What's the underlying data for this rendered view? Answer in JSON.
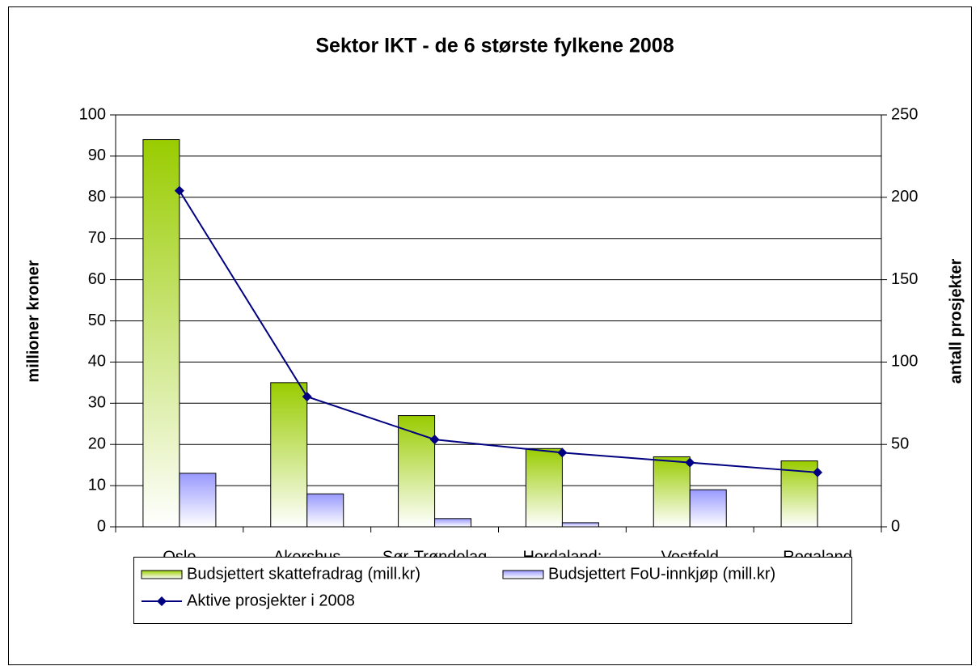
{
  "chart_data": {
    "type": "bar",
    "title": "Sektor IKT - de 6 største fylkene 2008",
    "y_label": "millioner kroner",
    "y2_label": "antall prosjekter",
    "categories": [
      "Oslo",
      "Akershus",
      "Sør-Trøndelag",
      "Hordaland:",
      "Vestfold",
      "Rogaland"
    ],
    "series": [
      {
        "name": "Budsjettert skattefradrag (mill.kr)",
        "type": "bar",
        "color": "#99cc00",
        "values": [
          94,
          35,
          27,
          19,
          17,
          16
        ]
      },
      {
        "name": "Budsjettert FoU-innkjøp (mill.kr)",
        "type": "bar",
        "color": "#9999ff",
        "values": [
          13,
          8,
          2,
          1,
          9,
          0
        ]
      },
      {
        "name": "Aktive prosjekter i 2008",
        "type": "line",
        "axis": "y2",
        "color": "#000080",
        "values": [
          204,
          79,
          53,
          45,
          39,
          33
        ]
      }
    ],
    "ylim": [
      0,
      100
    ],
    "yticks": [
      0,
      10,
      20,
      30,
      40,
      50,
      60,
      70,
      80,
      90,
      100
    ],
    "y2lim": [
      0,
      250
    ],
    "y2ticks": [
      0,
      50,
      100,
      150,
      200,
      250
    ],
    "grid": true,
    "legend": "bottom"
  }
}
